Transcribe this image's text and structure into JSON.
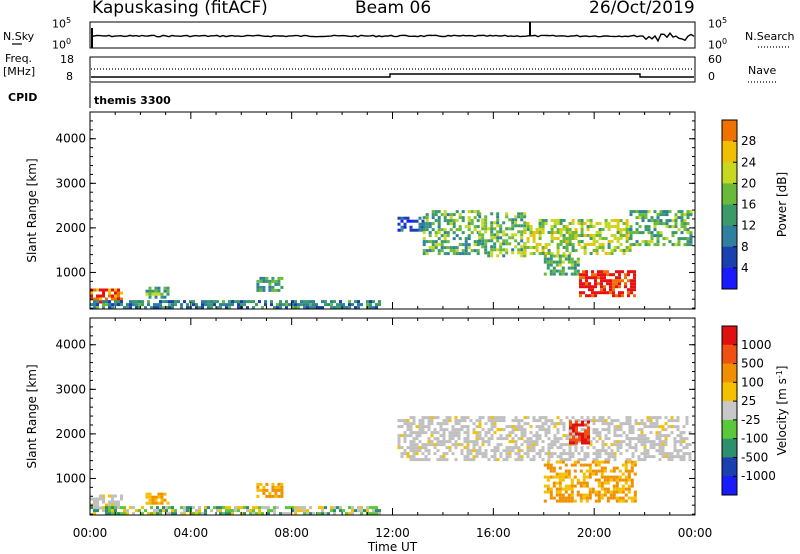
{
  "header": {
    "site": "Kapuskasing (fitACF)",
    "beam": "Beam 06",
    "date": "26/Oct/2019"
  },
  "status": {
    "nsky_label": "N.Sky",
    "nsearch_label": "N.Search",
    "noise_ticks_left": [
      "10^5",
      "10^0"
    ],
    "noise_ticks_right": [
      "10^5",
      "10^0"
    ],
    "freq_label_line1": "Freq.",
    "freq_label_line2": "[MHz]",
    "freq_ticks": [
      "18",
      "8"
    ],
    "nave_label": "Nave",
    "nave_ticks": [
      "60",
      "0"
    ],
    "cpid_label": "CPID",
    "cpid_value": "themis 3300"
  },
  "colors": {
    "power_scale": [
      "#1a1aff",
      "#1a3fb0",
      "#2e7fa0",
      "#3a9a6a",
      "#6aba3a",
      "#c8d820",
      "#f0c000",
      "#f07000",
      "#e81010"
    ],
    "velocity_scale": [
      "#1a1aff",
      "#1a3fb0",
      "#2e8f6e",
      "#5ac83a",
      "#c8c8c8",
      "#f5c000",
      "#f09000",
      "#f05010",
      "#e01010"
    ],
    "ground_scatter": "#c0c0c0"
  },
  "chart_data": [
    {
      "type": "heatmap",
      "name": "power",
      "ylabel": "Slant Range [km]",
      "xlabel": "",
      "x_ticks": [
        "00:00",
        "04:00",
        "08:00",
        "12:00",
        "16:00",
        "20:00",
        "00:00"
      ],
      "x_range_hours": [
        0,
        24
      ],
      "y_ticks": [
        1000,
        2000,
        3000,
        4000
      ],
      "ylim": [
        180,
        4600
      ],
      "colorbar": {
        "label": "Power [dB]",
        "ticks": [
          "4",
          "8",
          "12",
          "16",
          "20",
          "24",
          "28"
        ],
        "range": [
          0,
          32
        ]
      },
      "scatter_regions": [
        {
          "t": [
            0.0,
            1.2
          ],
          "range": [
            330,
            640
          ],
          "level": 27
        },
        {
          "t": [
            0.0,
            11.5
          ],
          "range": [
            190,
            380
          ],
          "level": 10
        },
        {
          "t": [
            2.2,
            3.1
          ],
          "range": [
            450,
            680
          ],
          "level": 14
        },
        {
          "t": [
            6.6,
            7.6
          ],
          "range": [
            600,
            900
          ],
          "level": 12
        },
        {
          "t": [
            12.2,
            13.2
          ],
          "range": [
            1980,
            2250
          ],
          "level": 6
        },
        {
          "t": [
            13.2,
            15.4
          ],
          "range": [
            1400,
            2400
          ],
          "level": 14
        },
        {
          "t": [
            15.4,
            17.2
          ],
          "range": [
            1400,
            2350
          ],
          "level": 15
        },
        {
          "t": [
            17.2,
            21.4
          ],
          "range": [
            1400,
            2200
          ],
          "level": 18
        },
        {
          "t": [
            21.4,
            23.8
          ],
          "range": [
            1600,
            2400
          ],
          "level": 14
        },
        {
          "t": [
            18.0,
            19.4
          ],
          "range": [
            950,
            1400
          ],
          "level": 14
        },
        {
          "t": [
            19.4,
            21.6
          ],
          "range": [
            500,
            1050
          ],
          "level": 30
        }
      ]
    },
    {
      "type": "heatmap",
      "name": "velocity",
      "ylabel": "Slant Range [km]",
      "xlabel": "Time UT",
      "x_ticks": [
        "00:00",
        "04:00",
        "08:00",
        "12:00",
        "16:00",
        "20:00",
        "00:00"
      ],
      "x_range_hours": [
        0,
        24
      ],
      "y_ticks": [
        1000,
        2000,
        3000,
        4000
      ],
      "ylim": [
        180,
        4600
      ],
      "colorbar": {
        "label": "Velocity [m s",
        "label_superscript": "-1",
        "label_close": "]",
        "ticks": [
          "1000",
          "500",
          "100",
          "25",
          "-25",
          "-100",
          "-500",
          "-1000"
        ]
      },
      "scatter_regions": [
        {
          "t": [
            0.0,
            1.2
          ],
          "range": [
            330,
            640
          ],
          "level": "ground"
        },
        {
          "t": [
            0.0,
            11.5
          ],
          "range": [
            190,
            380
          ],
          "level": "mixed"
        },
        {
          "t": [
            2.2,
            3.1
          ],
          "range": [
            450,
            680
          ],
          "level": "orange"
        },
        {
          "t": [
            6.6,
            7.6
          ],
          "range": [
            600,
            900
          ],
          "level": "orange"
        },
        {
          "t": [
            12.2,
            23.8
          ],
          "range": [
            1400,
            2400
          ],
          "level": "ground"
        },
        {
          "t": [
            19.0,
            19.8
          ],
          "range": [
            1800,
            2300
          ],
          "level": "red"
        },
        {
          "t": [
            18.0,
            21.6
          ],
          "range": [
            500,
            1400
          ],
          "level": "orange"
        }
      ]
    }
  ]
}
